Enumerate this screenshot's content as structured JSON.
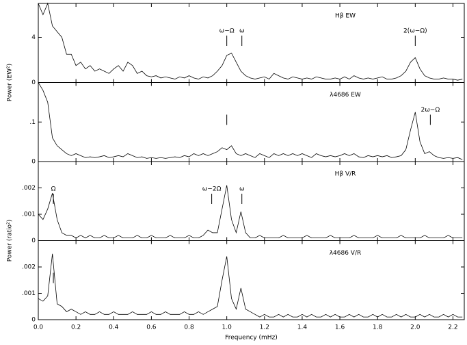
{
  "chart_data": [
    {
      "type": "line",
      "title": "Hβ EW",
      "ylabel": "Power (EW²)",
      "color": "#000000",
      "x": [
        0,
        0.025,
        0.05,
        0.075,
        0.1,
        0.125,
        0.15,
        0.175,
        0.2,
        0.225,
        0.25,
        0.275,
        0.3,
        0.325,
        0.35,
        0.375,
        0.4,
        0.425,
        0.45,
        0.475,
        0.5,
        0.525,
        0.55,
        0.575,
        0.6,
        0.625,
        0.65,
        0.675,
        0.7,
        0.725,
        0.75,
        0.775,
        0.8,
        0.825,
        0.85,
        0.875,
        0.9,
        0.925,
        0.95,
        0.975,
        1.0,
        1.025,
        1.05,
        1.075,
        1.1,
        1.125,
        1.15,
        1.175,
        1.2,
        1.225,
        1.25,
        1.275,
        1.3,
        1.325,
        1.35,
        1.375,
        1.4,
        1.425,
        1.45,
        1.475,
        1.5,
        1.525,
        1.55,
        1.575,
        1.6,
        1.625,
        1.65,
        1.675,
        1.7,
        1.725,
        1.75,
        1.775,
        1.8,
        1.825,
        1.85,
        1.875,
        1.9,
        1.925,
        1.95,
        1.975,
        2.0,
        2.025,
        2.05,
        2.075,
        2.1,
        2.125,
        2.15,
        2.175,
        2.2,
        2.225,
        2.25
      ],
      "values": [
        7,
        6,
        7,
        5,
        4.5,
        4,
        2.5,
        2.5,
        1.5,
        1.8,
        1.2,
        1.5,
        1.0,
        1.2,
        1.0,
        0.8,
        1.2,
        1.5,
        1.0,
        1.8,
        1.5,
        0.8,
        1.0,
        0.6,
        0.5,
        0.6,
        0.4,
        0.5,
        0.4,
        0.3,
        0.5,
        0.4,
        0.6,
        0.4,
        0.3,
        0.5,
        0.4,
        0.6,
        1.0,
        1.5,
        2.4,
        2.6,
        1.8,
        1.0,
        0.6,
        0.4,
        0.3,
        0.4,
        0.5,
        0.3,
        0.8,
        0.6,
        0.4,
        0.3,
        0.5,
        0.4,
        0.3,
        0.4,
        0.3,
        0.5,
        0.4,
        0.3,
        0.3,
        0.4,
        0.3,
        0.5,
        0.3,
        0.6,
        0.4,
        0.3,
        0.4,
        0.3,
        0.4,
        0.5,
        0.3,
        0.3,
        0.4,
        0.6,
        1.0,
        1.8,
        2.2,
        1.2,
        0.6,
        0.4,
        0.3,
        0.3,
        0.4,
        0.3,
        0.3,
        0.2,
        0.3
      ],
      "ylim": [
        0,
        7
      ],
      "yticks": [
        0,
        4
      ],
      "annotations": [
        {
          "text": "ω−Ω",
          "x": 1.0
        },
        {
          "text": "ω",
          "x": 1.08
        },
        {
          "text": "2(ω−Ω)",
          "x": 2.0
        }
      ]
    },
    {
      "type": "line",
      "title": "λ4686 EW",
      "color": "#000000",
      "x": [
        0,
        0.025,
        0.05,
        0.075,
        0.1,
        0.125,
        0.15,
        0.175,
        0.2,
        0.225,
        0.25,
        0.275,
        0.3,
        0.325,
        0.35,
        0.375,
        0.4,
        0.425,
        0.45,
        0.475,
        0.5,
        0.525,
        0.55,
        0.575,
        0.6,
        0.625,
        0.65,
        0.675,
        0.7,
        0.725,
        0.75,
        0.775,
        0.8,
        0.825,
        0.85,
        0.875,
        0.9,
        0.925,
        0.95,
        0.975,
        1.0,
        1.025,
        1.05,
        1.075,
        1.1,
        1.125,
        1.15,
        1.175,
        1.2,
        1.225,
        1.25,
        1.275,
        1.3,
        1.325,
        1.35,
        1.375,
        1.4,
        1.425,
        1.45,
        1.475,
        1.5,
        1.525,
        1.55,
        1.575,
        1.6,
        1.625,
        1.65,
        1.675,
        1.7,
        1.725,
        1.75,
        1.775,
        1.8,
        1.825,
        1.85,
        1.875,
        1.9,
        1.925,
        1.95,
        1.975,
        2.0,
        2.025,
        2.05,
        2.075,
        2.1,
        2.125,
        2.15,
        2.175,
        2.2,
        2.225,
        2.25
      ],
      "values": [
        0.2,
        0.18,
        0.15,
        0.06,
        0.04,
        0.03,
        0.02,
        0.015,
        0.02,
        0.015,
        0.01,
        0.012,
        0.01,
        0.012,
        0.015,
        0.01,
        0.012,
        0.015,
        0.012,
        0.02,
        0.015,
        0.01,
        0.012,
        0.008,
        0.01,
        0.008,
        0.01,
        0.008,
        0.01,
        0.012,
        0.01,
        0.015,
        0.012,
        0.02,
        0.015,
        0.02,
        0.015,
        0.02,
        0.025,
        0.035,
        0.03,
        0.04,
        0.02,
        0.015,
        0.02,
        0.015,
        0.01,
        0.02,
        0.015,
        0.01,
        0.02,
        0.015,
        0.02,
        0.015,
        0.02,
        0.015,
        0.02,
        0.015,
        0.01,
        0.02,
        0.015,
        0.012,
        0.015,
        0.012,
        0.015,
        0.02,
        0.015,
        0.02,
        0.012,
        0.01,
        0.015,
        0.012,
        0.015,
        0.012,
        0.015,
        0.01,
        0.012,
        0.015,
        0.03,
        0.08,
        0.125,
        0.05,
        0.02,
        0.025,
        0.015,
        0.01,
        0.008,
        0.01,
        0.008,
        0.01,
        0.005
      ],
      "ylim": [
        0,
        0.2
      ],
      "yticks": [
        0,
        {
          "value": 0.1,
          "label": ".1"
        }
      ],
      "annotations": [
        {
          "x": 1.0
        },
        {
          "text": "2ω−Ω",
          "x": 2.08
        }
      ]
    },
    {
      "type": "line",
      "title": "Hβ V/R",
      "ylabel": "Power (ratio²)",
      "color": "#000000",
      "x": [
        0,
        0.025,
        0.05,
        0.075,
        0.1,
        0.125,
        0.15,
        0.175,
        0.2,
        0.225,
        0.25,
        0.275,
        0.3,
        0.325,
        0.35,
        0.375,
        0.4,
        0.425,
        0.45,
        0.475,
        0.5,
        0.525,
        0.55,
        0.575,
        0.6,
        0.625,
        0.65,
        0.675,
        0.7,
        0.725,
        0.75,
        0.775,
        0.8,
        0.825,
        0.85,
        0.875,
        0.9,
        0.925,
        0.95,
        0.975,
        1.0,
        1.025,
        1.05,
        1.075,
        1.1,
        1.125,
        1.15,
        1.175,
        1.2,
        1.225,
        1.25,
        1.275,
        1.3,
        1.325,
        1.35,
        1.375,
        1.4,
        1.425,
        1.45,
        1.475,
        1.5,
        1.525,
        1.55,
        1.575,
        1.6,
        1.625,
        1.65,
        1.675,
        1.7,
        1.725,
        1.75,
        1.775,
        1.8,
        1.825,
        1.85,
        1.875,
        1.9,
        1.925,
        1.95,
        1.975,
        2.0,
        2.025,
        2.05,
        2.075,
        2.1,
        2.125,
        2.15,
        2.175,
        2.2,
        2.225,
        2.25
      ],
      "values": [
        0.001,
        0.0008,
        0.0012,
        0.0018,
        0.0008,
        0.0003,
        0.0002,
        0.0002,
        0.0001,
        0.0002,
        0.0001,
        0.0002,
        0.0001,
        0.0001,
        0.0002,
        0.0001,
        0.0001,
        0.0002,
        0.0001,
        0.0001,
        0.0001,
        0.0002,
        0.0001,
        0.0001,
        0.0002,
        0.0001,
        0.0001,
        0.0001,
        0.0002,
        0.0001,
        0.0001,
        0.0001,
        0.0002,
        0.0001,
        0.0001,
        0.0002,
        0.0004,
        0.0003,
        0.0003,
        0.0012,
        0.0021,
        0.0008,
        0.0003,
        0.0011,
        0.0003,
        0.0001,
        0.0001,
        0.0002,
        0.0001,
        0.0001,
        0.0001,
        0.0001,
        0.0002,
        0.0001,
        0.0001,
        0.0001,
        0.0001,
        0.0002,
        0.0001,
        0.0001,
        0.0001,
        0.0001,
        0.0002,
        0.0001,
        0.0001,
        0.0001,
        0.0001,
        0.0002,
        0.0001,
        0.0001,
        0.0001,
        0.0001,
        0.0002,
        0.0001,
        0.0001,
        0.0001,
        0.0001,
        0.0002,
        0.0001,
        0.0001,
        0.0001,
        0.0001,
        0.0002,
        0.0001,
        0.0001,
        0.0001,
        0.0001,
        0.0002,
        0.0001,
        0.0001,
        0.0001
      ],
      "ylim": [
        0,
        0.003
      ],
      "yticks": [
        0,
        {
          "value": 0.001,
          "label": ".001"
        },
        {
          "value": 0.002,
          "label": ".002"
        }
      ],
      "annotations": [
        {
          "text": "Ω",
          "x": 0.08
        },
        {
          "text": "ω−2Ω",
          "x": 0.92
        },
        {
          "text": "ω",
          "x": 1.08
        }
      ]
    },
    {
      "type": "line",
      "title": "λ4686 V/R",
      "xlabel": "Frequency (mHz)",
      "color": "#000000",
      "x": [
        0,
        0.025,
        0.05,
        0.075,
        0.1,
        0.125,
        0.15,
        0.175,
        0.2,
        0.225,
        0.25,
        0.275,
        0.3,
        0.325,
        0.35,
        0.375,
        0.4,
        0.425,
        0.45,
        0.475,
        0.5,
        0.525,
        0.55,
        0.575,
        0.6,
        0.625,
        0.65,
        0.675,
        0.7,
        0.725,
        0.75,
        0.775,
        0.8,
        0.825,
        0.85,
        0.875,
        0.9,
        0.925,
        0.95,
        0.975,
        1.0,
        1.025,
        1.05,
        1.075,
        1.1,
        1.125,
        1.15,
        1.175,
        1.2,
        1.225,
        1.25,
        1.275,
        1.3,
        1.325,
        1.35,
        1.375,
        1.4,
        1.425,
        1.45,
        1.475,
        1.5,
        1.525,
        1.55,
        1.575,
        1.6,
        1.625,
        1.65,
        1.675,
        1.7,
        1.725,
        1.75,
        1.775,
        1.8,
        1.825,
        1.85,
        1.875,
        1.9,
        1.925,
        1.95,
        1.975,
        2.0,
        2.025,
        2.05,
        2.075,
        2.1,
        2.125,
        2.15,
        2.175,
        2.2,
        2.225,
        2.25
      ],
      "values": [
        0.0008,
        0.0007,
        0.0009,
        0.0025,
        0.0006,
        0.0005,
        0.0003,
        0.0004,
        0.0003,
        0.0002,
        0.0003,
        0.0002,
        0.0002,
        0.0003,
        0.0002,
        0.0002,
        0.0003,
        0.0002,
        0.0002,
        0.0002,
        0.0003,
        0.0002,
        0.0002,
        0.0002,
        0.0003,
        0.0002,
        0.0002,
        0.0003,
        0.0002,
        0.0002,
        0.0002,
        0.0003,
        0.0002,
        0.0002,
        0.0003,
        0.0002,
        0.0003,
        0.0004,
        0.0005,
        0.0015,
        0.0024,
        0.0008,
        0.0004,
        0.0012,
        0.0004,
        0.0003,
        0.0002,
        0.0001,
        0.0002,
        0.0001,
        0.0001,
        0.0002,
        0.0001,
        0.0002,
        0.0001,
        0.0001,
        0.0002,
        0.0001,
        0.0002,
        0.0001,
        0.0001,
        0.0002,
        0.0001,
        0.0002,
        0.0001,
        0.0001,
        0.0002,
        0.0001,
        0.0002,
        0.0001,
        0.0001,
        0.0002,
        0.0001,
        0.0002,
        0.0001,
        0.0001,
        0.0002,
        0.0001,
        0.0002,
        0.0001,
        0.0001,
        0.0002,
        0.0001,
        0.0002,
        0.0001,
        0.0001,
        0.0002,
        0.0001,
        0.0002,
        0.0001,
        0.0001
      ],
      "ylim": [
        0,
        0.003
      ],
      "yticks": [
        0,
        {
          "value": 0.001,
          "label": ".001"
        },
        {
          "value": 0.002,
          "label": ".002"
        }
      ],
      "annotations": [
        {
          "x": 0.08
        }
      ],
      "xlim": [
        0,
        2.26
      ],
      "xticks": [
        {
          "value": 0,
          "label": "0.0"
        },
        0.2,
        0.4,
        0.6,
        0.8,
        {
          "value": 1,
          "label": "1.0"
        },
        1.2,
        1.4,
        1.6,
        1.8,
        {
          "value": 2,
          "label": "2.0"
        },
        2.2
      ]
    }
  ]
}
